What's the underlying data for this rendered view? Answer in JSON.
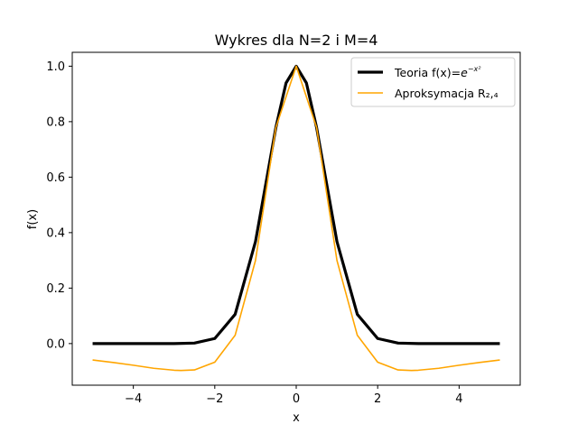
{
  "chart_data": {
    "type": "line",
    "title": "Wykres dla N=2 i M=4",
    "xlabel": "x",
    "ylabel": "f(x)",
    "xlim": [
      -5.5,
      5.5
    ],
    "ylim": [
      -0.15,
      1.05
    ],
    "xticks": [
      -4,
      -2,
      0,
      2,
      4
    ],
    "xtick_labels": [
      "−4",
      "−2",
      "0",
      "2",
      "4"
    ],
    "yticks": [
      0.0,
      0.2,
      0.4,
      0.6,
      0.8,
      1.0
    ],
    "ytick_labels": [
      "0.0",
      "0.2",
      "0.4",
      "0.6",
      "0.8",
      "1.0"
    ],
    "grid": false,
    "legend_position": "top-right",
    "series": [
      {
        "name": "Teoria f(x)=e^{−x²}",
        "legend_prefix": "Teoria f(x)=",
        "legend_base": "e",
        "legend_exponent": "−x²",
        "color": "#000000",
        "line_width": "thick",
        "x_range": [
          -5,
          5
        ],
        "points": [
          [
            -5,
            0.0
          ],
          [
            -4,
            0.0
          ],
          [
            -3,
            0.0001
          ],
          [
            -2.5,
            0.0019
          ],
          [
            -2,
            0.0183
          ],
          [
            -1.5,
            0.1054
          ],
          [
            -1,
            0.3679
          ],
          [
            -0.5,
            0.7788
          ],
          [
            -0.25,
            0.9394
          ],
          [
            0,
            1.0
          ],
          [
            0.25,
            0.9394
          ],
          [
            0.5,
            0.7788
          ],
          [
            1,
            0.3679
          ],
          [
            1.5,
            0.1054
          ],
          [
            2,
            0.0183
          ],
          [
            2.5,
            0.0019
          ],
          [
            3,
            0.0001
          ],
          [
            4,
            0.0
          ],
          [
            5,
            0.0
          ]
        ]
      },
      {
        "name": "Aproksymacja R₂,₄",
        "legend_prefix": "Aproksymacja R₂,₄",
        "color": "#ffa500",
        "line_width": "thin",
        "x_range": [
          -5,
          5
        ],
        "points": [
          [
            -5,
            -0.059
          ],
          [
            -4.5,
            -0.068
          ],
          [
            -4,
            -0.078
          ],
          [
            -3.5,
            -0.089
          ],
          [
            -3,
            -0.096
          ],
          [
            -2.828,
            -0.097
          ],
          [
            -2.5,
            -0.095
          ],
          [
            -2,
            -0.067
          ],
          [
            -1.5,
            0.03
          ],
          [
            -1,
            0.3
          ],
          [
            -0.5,
            0.779
          ],
          [
            0,
            1.0
          ],
          [
            0.5,
            0.779
          ],
          [
            1,
            0.3
          ],
          [
            1.5,
            0.03
          ],
          [
            2,
            -0.067
          ],
          [
            2.5,
            -0.095
          ],
          [
            2.828,
            -0.097
          ],
          [
            3,
            -0.096
          ],
          [
            3.5,
            -0.089
          ],
          [
            4,
            -0.078
          ],
          [
            4.5,
            -0.068
          ],
          [
            5,
            -0.059
          ]
        ]
      }
    ]
  }
}
